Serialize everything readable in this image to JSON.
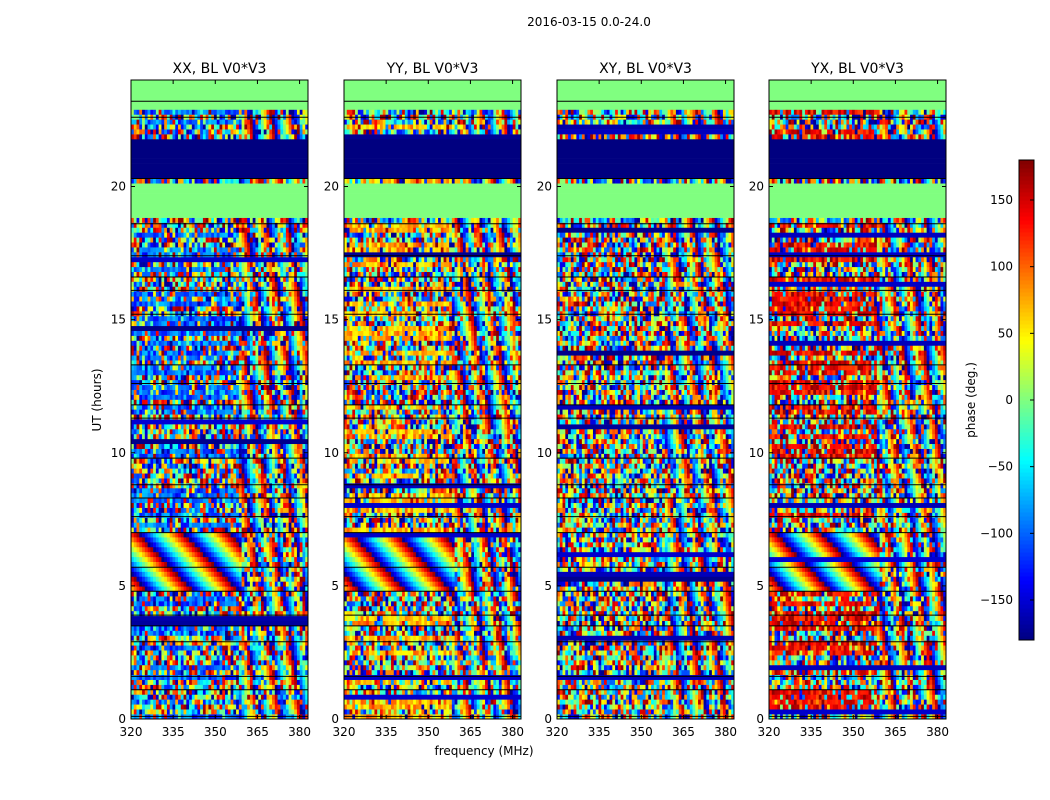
{
  "chart_data": {
    "type": "heatmap",
    "suptitle": "2016-03-15 0.0-24.0",
    "xlabel": "frequency (MHz)",
    "ylabel": "UT (hours)",
    "xlim": [
      320,
      383
    ],
    "ylim": [
      0,
      24
    ],
    "xticks": [
      "320",
      "335",
      "350",
      "365",
      "380"
    ],
    "xtick_values": [
      320,
      335,
      350,
      365,
      380
    ],
    "yticks": [
      "0",
      "5",
      "10",
      "15",
      "20"
    ],
    "ytick_values": [
      0,
      5,
      10,
      15,
      20
    ],
    "colormap": "jet",
    "colorbar": {
      "label": "phase (deg.)",
      "range": [
        -180,
        180
      ],
      "ticks": [
        "150",
        "100",
        "50",
        "0",
        "−50",
        "−100",
        "−150"
      ],
      "tick_values": [
        150,
        100,
        50,
        0,
        -50,
        -100,
        -150
      ]
    },
    "flagged_value": 0,
    "flagged_ut_ranges": [
      [
        18.8,
        20.1
      ],
      [
        22.9,
        24.0
      ]
    ],
    "saturated_ut_range": [
      20.4,
      21.8
    ],
    "panels": [
      {
        "title": "XX, BL V0*V3",
        "bias": -100,
        "fringes": true
      },
      {
        "title": "YY, BL V0*V3",
        "bias": 70,
        "fringes": true
      },
      {
        "title": "XY, BL V0*V3",
        "bias": null,
        "fringes": false
      },
      {
        "title": "YX, BL V0*V3",
        "bias": 140,
        "fringes": true
      }
    ]
  }
}
